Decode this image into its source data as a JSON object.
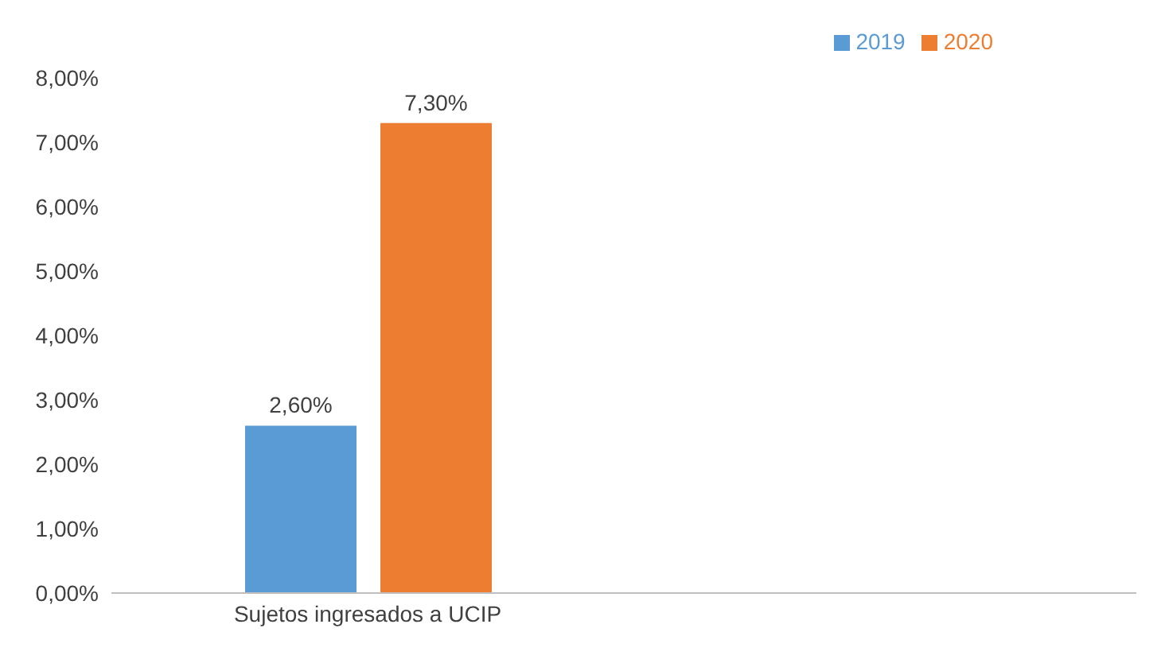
{
  "chart_data": {
    "type": "bar",
    "categories": [
      "Sujetos ingresados a UCIP",
      null
    ],
    "series": [
      {
        "name": "2019",
        "color": "#5b9bd5",
        "values": [
          2.6,
          null
        ],
        "value_labels": [
          "2,60%",
          null
        ]
      },
      {
        "name": "2020",
        "color": "#ed7d31",
        "values": [
          7.3,
          null
        ],
        "value_labels": [
          "7,30%",
          null
        ]
      }
    ],
    "ylim": [
      0,
      8
    ],
    "yticks": [
      {
        "value": 0,
        "label": "0,00%"
      },
      {
        "value": 1,
        "label": "1,00%"
      },
      {
        "value": 2,
        "label": "2,00%"
      },
      {
        "value": 3,
        "label": "3,00%"
      },
      {
        "value": 4,
        "label": "4,00%"
      },
      {
        "value": 5,
        "label": "5,00%"
      },
      {
        "value": 6,
        "label": "6,00%"
      },
      {
        "value": 7,
        "label": "7,00%"
      },
      {
        "value": 8,
        "label": "8,00%"
      }
    ],
    "grid": false,
    "legend": "top right"
  }
}
